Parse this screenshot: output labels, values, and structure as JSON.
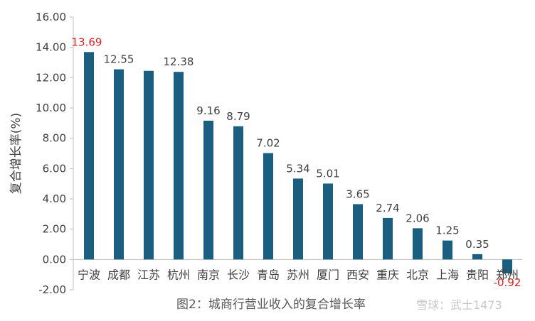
{
  "chart_data": {
    "type": "bar",
    "categories": [
      "宁波",
      "成都",
      "江苏",
      "杭州",
      "南京",
      "长沙",
      "青岛",
      "苏州",
      "厦门",
      "西安",
      "重庆",
      "北京",
      "上海",
      "贵阳",
      "郑州"
    ],
    "values": [
      13.69,
      12.55,
      12.45,
      12.38,
      9.16,
      8.79,
      7.02,
      5.34,
      5.01,
      3.65,
      2.74,
      2.06,
      1.25,
      0.35,
      -0.92
    ],
    "data_labels": [
      "13.69",
      "12.55",
      "",
      "12.38",
      "9.16",
      "8.79",
      "7.02",
      "5.34",
      "5.01",
      "3.65",
      "2.74",
      "2.06",
      "1.25",
      "0.35",
      "-0.92"
    ],
    "ylabel": "复合增长率(%)",
    "ylim": [
      -2,
      16
    ],
    "yticks": [
      "-2.00",
      "0.00",
      "2.00",
      "4.00",
      "6.00",
      "8.00",
      "10.00",
      "12.00",
      "14.00",
      "16.00"
    ],
    "ytick_values": [
      -2,
      0,
      2,
      4,
      6,
      8,
      10,
      12,
      14,
      16
    ],
    "grid": false,
    "legend": "none",
    "colors": {
      "bar": "#1a5e80",
      "highlight_label": "#e02020",
      "label": "#404040",
      "axis": "#bfbfbf"
    }
  },
  "caption": "图2：城商行营业收入的复合增长率",
  "watermark": "雪球：武士1473"
}
